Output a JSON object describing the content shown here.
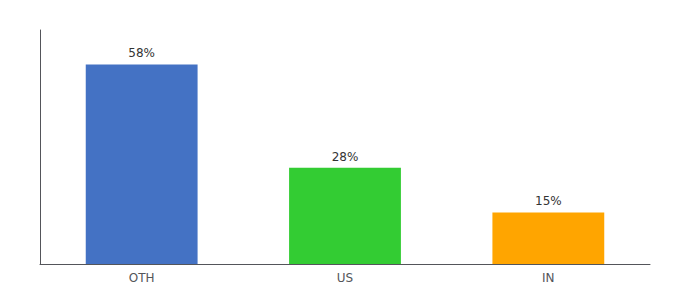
{
  "chart_data": {
    "type": "bar",
    "categories": [
      "OTH",
      "US",
      "IN"
    ],
    "values": [
      58,
      28,
      15
    ],
    "value_labels": [
      "58%",
      "28%",
      "15%"
    ],
    "colors": [
      "#4472C4",
      "#33CC33",
      "#FFA500"
    ],
    "ylim": [
      0,
      68
    ],
    "data_labels": true,
    "grid": false,
    "tick_labels": "x"
  }
}
